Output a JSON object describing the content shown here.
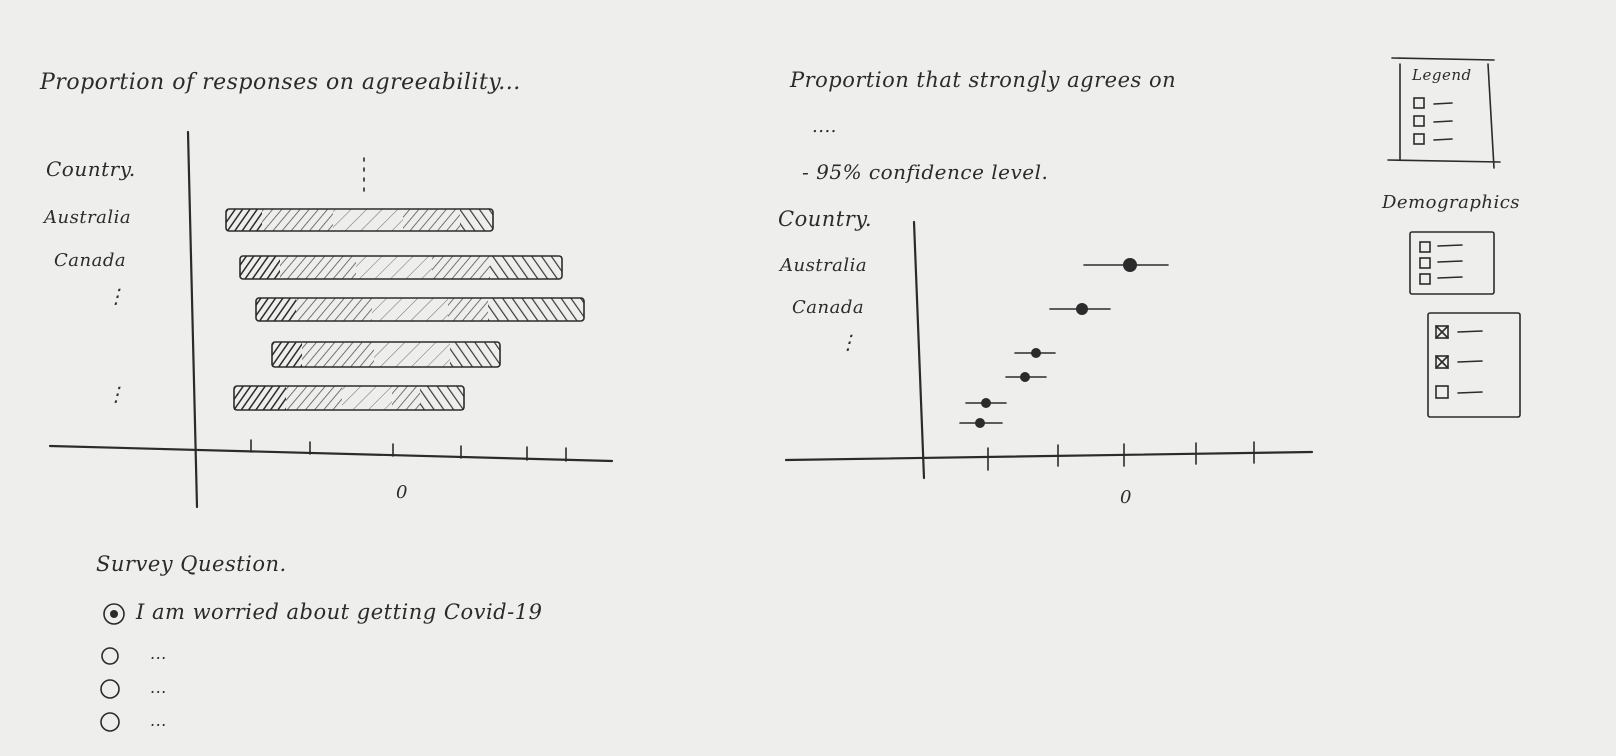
{
  "left_chart": {
    "title": "Proportion of responses on agreeability...",
    "country_header": "Country.",
    "countries": [
      "Australia",
      "Canada"
    ],
    "ellipsis": "⋮",
    "zero_label": "0"
  },
  "right_chart": {
    "title": "Proportion that strongly agrees on",
    "subtitle_dots": "....",
    "confidence_note": "- 95% confidence level.",
    "country_header": "Country.",
    "countries": [
      "Australia",
      "Canada"
    ],
    "ellipsis": "⋮",
    "zero_label": "0"
  },
  "legend": {
    "label": "Legend"
  },
  "demographics": {
    "label": "Demographics"
  },
  "survey": {
    "label": "Survey Question.",
    "options": [
      {
        "text": "I am worried about getting Covid-19",
        "selected": true
      },
      {
        "text": "...",
        "selected": false
      },
      {
        "text": "...",
        "selected": false
      },
      {
        "text": "...",
        "selected": false
      }
    ]
  },
  "chart_data": [
    {
      "type": "bar",
      "stacked": true,
      "orientation": "horizontal",
      "title": "Proportion of responses on agreeability...",
      "ylabel": "Country.",
      "categories": [
        "Australia",
        "Canada",
        "",
        "",
        ""
      ],
      "x_tick_labels": [
        "0"
      ]
    },
    {
      "type": "scatter",
      "error_bars": true,
      "title": "Proportion that strongly agrees on",
      "note": "- 95% confidence level.",
      "ylabel": "Country.",
      "categories": [
        "Australia",
        "Canada",
        "",
        "",
        "",
        ""
      ],
      "x_tick_labels": [
        "0"
      ]
    }
  ]
}
